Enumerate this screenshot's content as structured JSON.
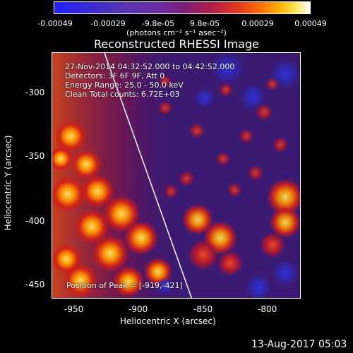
{
  "colorbar": {
    "ticks": [
      "-0.00049",
      "-0.00029",
      "-9.8e-05",
      "9.8e-05",
      "0.00029",
      "0.00049"
    ],
    "units": "(photons cm⁻² s⁻¹ asec⁻²)"
  },
  "title": "Reconstructed RHESSI Image",
  "annotations": {
    "line1": "27-Nov-2014 04:32:52.000 to 04:42:52.000",
    "line2": "Detectors: 3F 6F 9F, Att 0",
    "line3": "Energy Range: 25.0 - 50.0 keV",
    "line4": "Clean     Total counts: 6.72E+03",
    "peak": "Position of Peak = [-919,-421]"
  },
  "axes": {
    "x_label": "Heliocentric X (arcsec)",
    "y_label": "Heliocentric Y (arcsec)",
    "x_ticks": [
      "-950",
      "-900",
      "-850",
      "-800"
    ],
    "y_ticks": [
      "-300",
      "-350",
      "-400",
      "-450"
    ]
  },
  "footer": {
    "date": "13-Aug-2017 05:03"
  },
  "colors": {
    "background": "#000000",
    "text": "#ffffff",
    "plot_base": "#3b1a73"
  }
}
